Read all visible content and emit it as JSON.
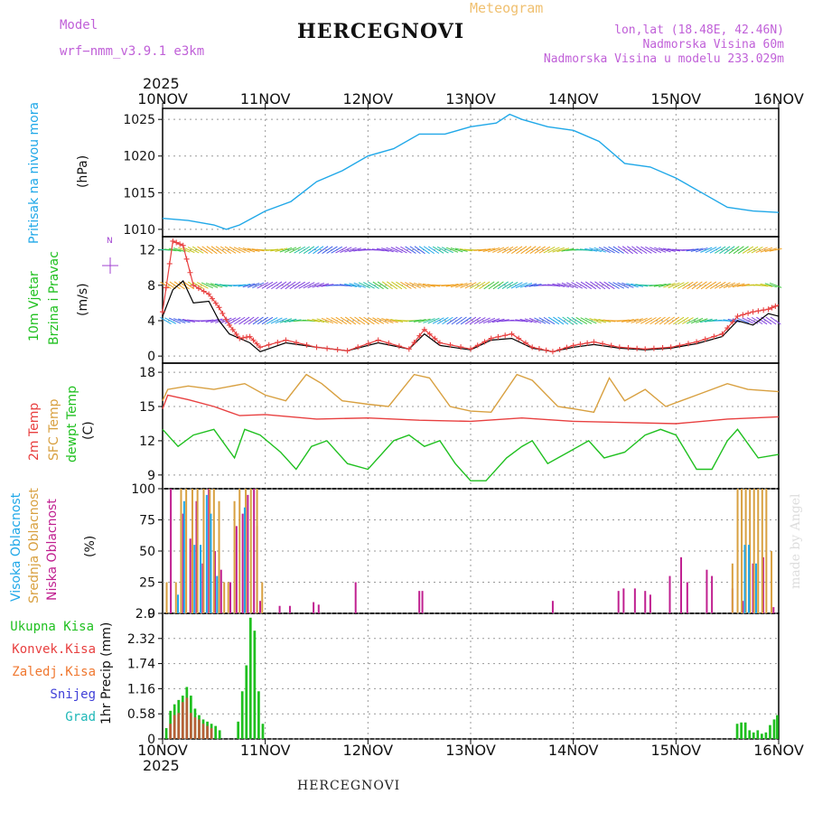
{
  "header": {
    "model_label": "Model",
    "model_name": "wrf−nmm_v3.9.1  e3km",
    "station_title": "HERCEGNOVI",
    "chart_kind": "Meteogram",
    "coords": "lon,lat (18.48E, 42.46N)",
    "elevation": "Nadmorska Visina 60m",
    "model_elevation": "Nadmorska Visina u modelu 233.029m",
    "year_top": "2025",
    "year_bottom": "2025",
    "bottom_name": "HERCEGNOVI",
    "credit": "made by Angel"
  },
  "colors": {
    "pressure": "#20a8e8",
    "wind_speed": "#e84040",
    "gust": "#000000",
    "t2m": "#e84040",
    "sfc": "#d8a040",
    "dewpt": "#20c020",
    "high_cloud": "#20a8e8",
    "mid_cloud": "#d8a040",
    "low_cloud": "#c02090",
    "total_precip": "#20c020",
    "conv_precip": "#e84040",
    "frozen_precip": "#f07830",
    "snow": "#4040d8",
    "hail": "#20b8b8"
  },
  "chart_data": [
    {
      "type": "line",
      "panel": "pressure",
      "ylabel_main": "Pritisak na nivou mora",
      "units": "(hPa)",
      "ylim": [
        1009,
        1026.5
      ],
      "yticks": [
        1010,
        1015,
        1020,
        1025
      ],
      "x_days": [
        0,
        0.25,
        0.5,
        0.62,
        0.75,
        1.0,
        1.25,
        1.5,
        1.75,
        2.0,
        2.25,
        2.5,
        2.75,
        3.0,
        3.25,
        3.38,
        3.5,
        3.75,
        4.0,
        4.25,
        4.5,
        4.75,
        5.0,
        5.25,
        5.5,
        5.75,
        6.0
      ],
      "values": [
        1011.5,
        1011.2,
        1010.6,
        1010.0,
        1010.6,
        1012.5,
        1013.8,
        1016.5,
        1018.0,
        1020.0,
        1021.0,
        1023.0,
        1023.0,
        1024.0,
        1024.5,
        1025.7,
        1025.0,
        1024.0,
        1023.5,
        1022.0,
        1019.0,
        1018.5,
        1017.0,
        1015.0,
        1013.0,
        1012.5,
        1012.3
      ]
    },
    {
      "type": "line",
      "panel": "wind",
      "ylabel_main": "10m Vjetar",
      "ylabel_sub": "Brzina i Pravac",
      "units": "(m/s)",
      "compass": "N",
      "ylim": [
        -0.8,
        13.5
      ],
      "yticks": [
        0,
        4,
        8,
        12
      ],
      "barb_rows": [
        12,
        8,
        4
      ],
      "series": [
        {
          "name": "Speed",
          "x_days": [
            0,
            0.1,
            0.2,
            0.3,
            0.45,
            0.55,
            0.65,
            0.75,
            0.85,
            0.95,
            1.2,
            1.5,
            1.8,
            2.1,
            2.4,
            2.55,
            2.7,
            3.0,
            3.2,
            3.4,
            3.6,
            3.8,
            4.0,
            4.2,
            4.45,
            4.7,
            4.95,
            5.2,
            5.45,
            5.6,
            5.75,
            5.9,
            6.0
          ],
          "values": [
            5.0,
            13.0,
            12.5,
            8.0,
            7.0,
            5.5,
            3.5,
            2.0,
            2.2,
            1.0,
            1.8,
            1.0,
            0.6,
            1.8,
            0.8,
            3.0,
            1.5,
            0.8,
            2.0,
            2.5,
            1.0,
            0.5,
            1.2,
            1.6,
            1.0,
            0.8,
            1.0,
            1.6,
            2.5,
            4.5,
            5.0,
            5.3,
            5.8
          ]
        },
        {
          "name": "Gust",
          "x_days": [
            0,
            0.1,
            0.2,
            0.3,
            0.45,
            0.55,
            0.65,
            0.75,
            0.85,
            0.95,
            1.2,
            1.5,
            1.8,
            2.1,
            2.4,
            2.55,
            2.7,
            3.0,
            3.2,
            3.4,
            3.6,
            3.8,
            4.0,
            4.2,
            4.45,
            4.7,
            4.95,
            5.2,
            5.45,
            5.6,
            5.75,
            5.9,
            6.0
          ],
          "values": [
            4.5,
            7.5,
            8.5,
            6.0,
            6.2,
            4.0,
            2.5,
            2.0,
            1.5,
            0.5,
            1.5,
            1.0,
            0.6,
            1.5,
            0.8,
            2.5,
            1.2,
            0.7,
            1.8,
            2.0,
            0.9,
            0.5,
            1.0,
            1.3,
            0.9,
            0.7,
            0.9,
            1.4,
            2.2,
            4.0,
            3.5,
            4.8,
            4.5
          ]
        }
      ]
    },
    {
      "type": "line",
      "panel": "temperature",
      "ylabels": [
        "2m Temp",
        "SFC Temp",
        "dewpt Temp"
      ],
      "units": "(C)",
      "ylim": [
        7.8,
        18.8
      ],
      "yticks": [
        9,
        12,
        15,
        18
      ],
      "series": [
        {
          "name": "2m Temp",
          "x_days": [
            0,
            0.05,
            0.25,
            0.5,
            0.75,
            1.0,
            1.5,
            2.0,
            2.5,
            3.0,
            3.5,
            4.0,
            4.5,
            5.0,
            5.5,
            6.0
          ],
          "values": [
            14.8,
            16.0,
            15.6,
            15.0,
            14.2,
            14.3,
            13.9,
            14.0,
            13.8,
            13.7,
            14.0,
            13.7,
            13.6,
            13.5,
            13.9,
            14.1
          ]
        },
        {
          "name": "SFC Temp",
          "x_days": [
            0,
            0.05,
            0.25,
            0.5,
            0.8,
            1.0,
            1.2,
            1.4,
            1.55,
            1.75,
            2.0,
            2.2,
            2.45,
            2.6,
            2.8,
            3.0,
            3.2,
            3.45,
            3.6,
            3.85,
            4.0,
            4.2,
            4.35,
            4.5,
            4.7,
            4.9,
            5.05,
            5.2,
            5.5,
            5.7,
            6.0
          ],
          "values": [
            15.5,
            16.5,
            16.8,
            16.5,
            17.0,
            16.0,
            15.5,
            17.8,
            17.0,
            15.5,
            15.2,
            15.0,
            17.8,
            17.5,
            15.0,
            14.6,
            14.5,
            17.8,
            17.3,
            15.0,
            14.8,
            14.5,
            17.5,
            15.5,
            16.5,
            15.0,
            15.5,
            16.0,
            17.0,
            16.5,
            16.3
          ]
        },
        {
          "name": "dewpt Temp",
          "x_days": [
            0,
            0.15,
            0.3,
            0.5,
            0.7,
            0.8,
            0.95,
            1.15,
            1.3,
            1.45,
            1.6,
            1.8,
            2.0,
            2.25,
            2.4,
            2.55,
            2.7,
            2.85,
            3.0,
            3.15,
            3.35,
            3.5,
            3.6,
            3.75,
            3.95,
            4.15,
            4.3,
            4.5,
            4.7,
            4.85,
            5.0,
            5.2,
            5.35,
            5.5,
            5.6,
            5.8,
            6.0
          ],
          "values": [
            13.0,
            11.5,
            12.5,
            13.0,
            10.5,
            13.0,
            12.5,
            11.0,
            9.5,
            11.5,
            12.0,
            10.0,
            9.5,
            12.0,
            12.5,
            11.5,
            12.0,
            10.0,
            8.5,
            8.5,
            10.5,
            11.5,
            12.0,
            10.0,
            11.0,
            12.0,
            10.5,
            11.0,
            12.5,
            13.0,
            12.5,
            9.5,
            9.5,
            12.0,
            13.0,
            10.5,
            10.8
          ]
        }
      ]
    },
    {
      "type": "bar",
      "panel": "cloud",
      "ylabels": [
        "Visoka Oblacnost",
        "Srednja Oblacnost",
        "Niska Oblacnost"
      ],
      "units": "(%)",
      "ylim": [
        0,
        100
      ],
      "yticks": [
        0,
        25,
        50,
        75,
        100
      ],
      "series": [
        {
          "name": "Niska Oblacnost",
          "x_days": [
            0.08,
            0.2,
            0.27,
            0.33,
            0.39,
            0.45,
            0.51,
            0.57,
            0.66,
            0.72,
            0.78,
            0.83,
            0.89,
            0.92,
            0.95,
            1.14,
            1.24,
            1.47,
            1.52,
            1.88,
            2.5,
            2.53,
            3.8,
            4.44,
            4.49,
            4.6,
            4.7,
            4.75,
            4.94,
            5.05,
            5.11,
            5.3,
            5.35,
            5.55,
            5.65,
            5.75,
            5.85,
            5.95
          ],
          "values": [
            100,
            80,
            60,
            90,
            40,
            100,
            50,
            35,
            25,
            70,
            80,
            95,
            100,
            70,
            10,
            6,
            6,
            9,
            7,
            25,
            18,
            18,
            10,
            18,
            20,
            20,
            18,
            15,
            30,
            45,
            25,
            35,
            30,
            20,
            10,
            40,
            45,
            5
          ]
        },
        {
          "name": "Srednja Oblacnost",
          "x_days": [
            0.04,
            0.13,
            0.18,
            0.23,
            0.29,
            0.34,
            0.4,
            0.46,
            0.5,
            0.55,
            0.6,
            0.64,
            0.7,
            0.75,
            0.81,
            0.86,
            0.92,
            0.97,
            5.55,
            5.6,
            5.64,
            5.68,
            5.72,
            5.76,
            5.8,
            5.84,
            5.88,
            5.93
          ],
          "values": [
            25,
            25,
            100,
            100,
            100,
            100,
            100,
            100,
            100,
            90,
            25,
            25,
            90,
            100,
            100,
            100,
            100,
            25,
            40,
            100,
            100,
            100,
            100,
            100,
            100,
            100,
            100,
            50
          ]
        },
        {
          "name": "Visoka Oblacnost",
          "x_days": [
            0.15,
            0.21,
            0.31,
            0.37,
            0.43,
            0.47,
            0.53,
            0.8,
            5.67,
            5.71,
            5.78
          ],
          "values": [
            15,
            90,
            55,
            55,
            95,
            80,
            30,
            85,
            55,
            55,
            40
          ]
        }
      ]
    },
    {
      "type": "bar",
      "panel": "precip",
      "ylabels": [
        "Ukupna Kisa",
        "Konvek.Kisa",
        "Zaledj.Kisa",
        "Snijeg",
        "Grad"
      ],
      "units": "1hr Precip (mm)",
      "ylim": [
        0,
        2.9
      ],
      "yticks": [
        0,
        0.58,
        1.16,
        1.74,
        2.32,
        2.9
      ],
      "ytick_labels": [
        "0",
        "0.58",
        "1.16",
        "1.74",
        "2.32",
        "2.9"
      ],
      "bar_width_days": 0.032,
      "series": [
        {
          "name": "Ukupna Kisa",
          "x_days": [
            0.04,
            0.08,
            0.12,
            0.16,
            0.2,
            0.24,
            0.28,
            0.32,
            0.36,
            0.4,
            0.44,
            0.48,
            0.52,
            0.56,
            0.74,
            0.78,
            0.82,
            0.86,
            0.9,
            0.94,
            0.98,
            5.6,
            5.64,
            5.68,
            5.72,
            5.76,
            5.8,
            5.84,
            5.88,
            5.92,
            5.96,
            5.99
          ],
          "values": [
            0.25,
            0.65,
            0.8,
            0.9,
            1.0,
            1.2,
            1.0,
            0.7,
            0.55,
            0.45,
            0.4,
            0.35,
            0.3,
            0.2,
            0.4,
            1.1,
            1.7,
            2.8,
            2.5,
            1.1,
            0.35,
            0.35,
            0.38,
            0.38,
            0.2,
            0.15,
            0.2,
            0.12,
            0.15,
            0.32,
            0.45,
            0.55
          ]
        },
        {
          "name": "Konvek.Kisa",
          "x_days": [
            0.08,
            0.12,
            0.16,
            0.2,
            0.24,
            0.28,
            0.32,
            0.36,
            0.4,
            0.44,
            0.48
          ],
          "values": [
            0.35,
            0.55,
            0.6,
            0.85,
            0.95,
            0.6,
            0.5,
            0.45,
            0.35,
            0.3,
            0.25
          ]
        }
      ]
    }
  ],
  "x_axis": {
    "start_day": 0,
    "end_day": 6,
    "tick_labels": [
      "10NOV",
      "11NOV",
      "12NOV",
      "13NOV",
      "14NOV",
      "15NOV",
      "16NOV"
    ]
  }
}
